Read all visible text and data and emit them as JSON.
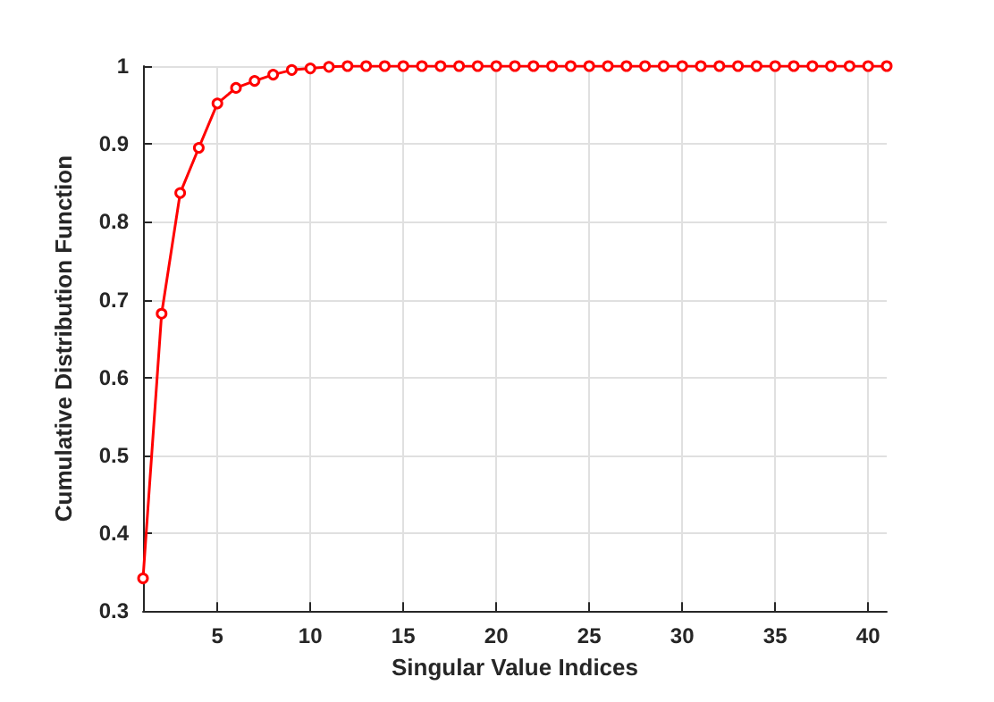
{
  "chart_data": {
    "type": "line",
    "xlabel": "Singular Value Indices",
    "ylabel": "Cumulative Distribution Function",
    "x": [
      1,
      2,
      3,
      4,
      5,
      6,
      7,
      8,
      9,
      10,
      11,
      12,
      13,
      14,
      15,
      16,
      17,
      18,
      19,
      20,
      21,
      22,
      23,
      24,
      25,
      26,
      27,
      28,
      29,
      30,
      31,
      32,
      33,
      34,
      35,
      36,
      37,
      38,
      39,
      40,
      41
    ],
    "series": [
      {
        "color": "#ff0000",
        "values": [
          0.342,
          0.682,
          0.837,
          0.895,
          0.952,
          0.972,
          0.981,
          0.989,
          0.995,
          0.997,
          0.999,
          1,
          1,
          1,
          1,
          1,
          1,
          1,
          1,
          1,
          1,
          1,
          1,
          1,
          1,
          1,
          1,
          1,
          1,
          1,
          1,
          1,
          1,
          1,
          1,
          1,
          1,
          1,
          1,
          1,
          1
        ]
      }
    ],
    "xlim": [
      1,
      41
    ],
    "xticks": [
      5,
      10,
      15,
      20,
      25,
      30,
      35,
      40
    ],
    "ylim": [
      0.3,
      1
    ],
    "yticks": [
      0.3,
      0.4,
      0.5,
      0.6,
      0.7,
      0.8,
      0.9,
      1
    ],
    "grid": true,
    "marker": "circle",
    "line_style": "solid"
  }
}
